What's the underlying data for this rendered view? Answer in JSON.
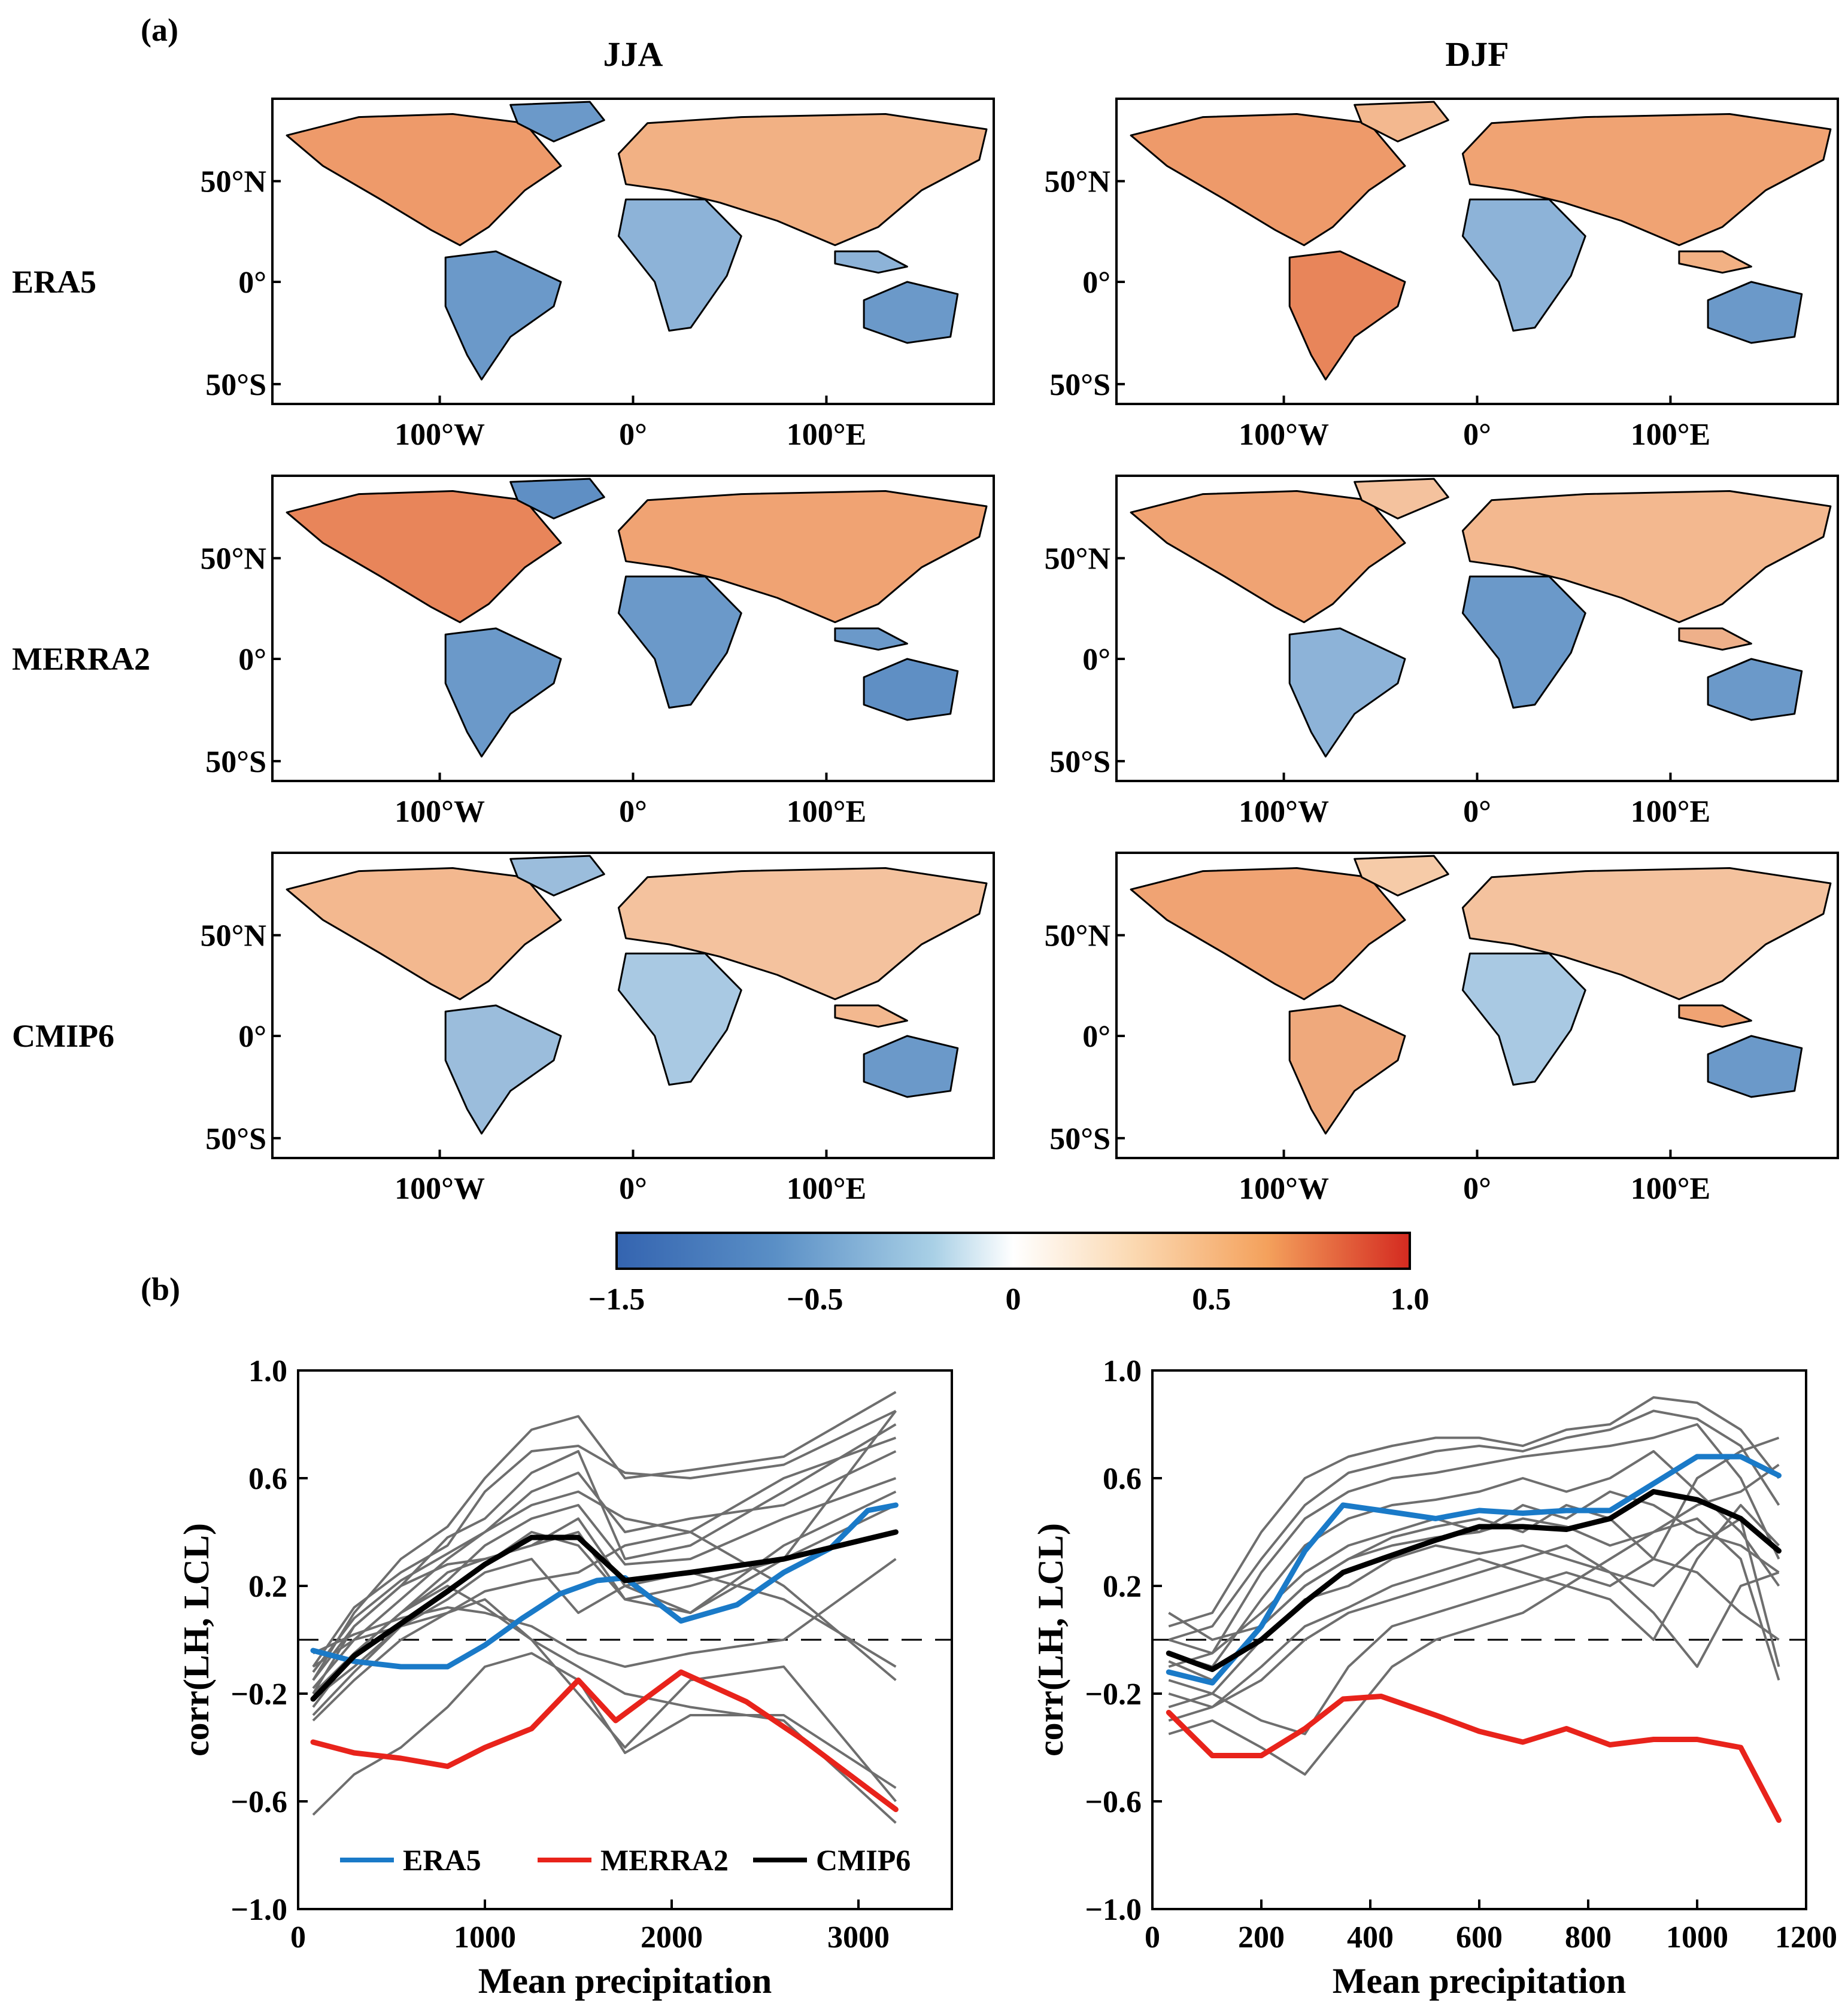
{
  "panel_labels": {
    "a": "(a)",
    "b": "(b)"
  },
  "maps": {
    "column_titles": [
      "JJA",
      "DJF"
    ],
    "row_labels": [
      "ERA5",
      "MERRA2",
      "CMIP6"
    ],
    "lat_ticks": [
      "50°N",
      "0°",
      "50°S"
    ],
    "lon_ticks": [
      "100°W",
      "0°",
      "100°E"
    ],
    "colors": {
      "negative": "#3a72b6",
      "neutral": "#f8f8f4",
      "positive": "#d42a20",
      "land_blue": "#6b99c9",
      "land_orange": "#ee9a6a"
    }
  },
  "colorbar": {
    "ticks": [
      "−1.5",
      "−0.5",
      "0",
      "0.5",
      "1.0"
    ],
    "stops": [
      "#3464b0",
      "#5a8fc6",
      "#a9d0e6",
      "#ffffff",
      "#fbd9b2",
      "#f4a15c",
      "#d42a20"
    ]
  },
  "chart_data": [
    {
      "type": "line",
      "xlabel": "Mean precipitation",
      "ylabel": "corr(LH, LCL)",
      "xlim": [
        0,
        3500
      ],
      "ylim": [
        -1.0,
        1.0
      ],
      "xticks": [
        "0",
        "1000",
        "2000",
        "3000"
      ],
      "yticks": [
        "1.0",
        "0.6",
        "0.2",
        "−0.2",
        "−0.6",
        "−1.0"
      ],
      "zero_line": "dashed",
      "legend": {
        "placement": "bottom-center",
        "entries": [
          "ERA5",
          "MERRA2",
          "CMIP6"
        ]
      },
      "series": [
        {
          "name": "ERA5",
          "color": "#1a7ac8",
          "x": [
            80,
            300,
            550,
            800,
            1000,
            1200,
            1400,
            1600,
            1750,
            2050,
            2350,
            2600,
            2850,
            3050,
            3200
          ],
          "y": [
            -0.04,
            -0.08,
            -0.1,
            -0.1,
            -0.02,
            0.08,
            0.17,
            0.22,
            0.23,
            0.07,
            0.13,
            0.25,
            0.34,
            0.48,
            0.5
          ]
        },
        {
          "name": "MERRA2",
          "color": "#e8231b",
          "x": [
            80,
            300,
            550,
            800,
            1000,
            1250,
            1500,
            1700,
            2050,
            2400,
            2700,
            2950,
            3200
          ],
          "y": [
            -0.38,
            -0.42,
            -0.44,
            -0.47,
            -0.4,
            -0.33,
            -0.15,
            -0.3,
            -0.12,
            -0.23,
            -0.37,
            -0.5,
            -0.63
          ]
        },
        {
          "name": "CMIP6",
          "color": "#000000",
          "x": [
            80,
            300,
            550,
            800,
            1000,
            1250,
            1500,
            1750,
            2100,
            2600,
            3200
          ],
          "y": [
            -0.22,
            -0.06,
            0.06,
            0.18,
            0.28,
            0.38,
            0.38,
            0.22,
            0.25,
            0.3,
            0.4
          ]
        }
      ],
      "models": [
        {
          "x": [
            80,
            300,
            550,
            800,
            1000,
            1250,
            1500,
            1750,
            2100,
            2600,
            3200
          ],
          "y": [
            -0.15,
            0.1,
            0.3,
            0.42,
            0.6,
            0.78,
            0.83,
            0.6,
            0.63,
            0.68,
            0.92
          ]
        },
        {
          "x": [
            80,
            300,
            550,
            800,
            1000,
            1250,
            1500,
            1750,
            2100,
            2600,
            3200
          ],
          "y": [
            -0.1,
            0.12,
            0.25,
            0.35,
            0.55,
            0.7,
            0.72,
            0.62,
            0.6,
            0.65,
            0.85
          ]
        },
        {
          "x": [
            80,
            300,
            550,
            800,
            1000,
            1250,
            1500,
            1750,
            2100,
            2600,
            3200
          ],
          "y": [
            -0.2,
            0.05,
            0.2,
            0.38,
            0.45,
            0.62,
            0.7,
            0.3,
            0.35,
            0.55,
            0.8
          ]
        },
        {
          "x": [
            80,
            300,
            550,
            800,
            1000,
            1250,
            1500,
            1750,
            2100,
            2600,
            3200
          ],
          "y": [
            -0.18,
            0.0,
            0.15,
            0.3,
            0.4,
            0.55,
            0.62,
            0.4,
            0.45,
            0.5,
            0.7
          ]
        },
        {
          "x": [
            80,
            300,
            550,
            800,
            1000,
            1250,
            1500,
            1750,
            2100,
            2600,
            3200
          ],
          "y": [
            -0.25,
            -0.05,
            0.1,
            0.22,
            0.35,
            0.45,
            0.5,
            0.28,
            0.3,
            0.45,
            0.6
          ]
        },
        {
          "x": [
            80,
            300,
            550,
            800,
            1000,
            1250,
            1500,
            1750,
            2100,
            2600,
            3200
          ],
          "y": [
            -0.15,
            0.05,
            0.2,
            0.28,
            0.3,
            0.35,
            0.4,
            0.15,
            0.2,
            0.3,
            0.85
          ]
        },
        {
          "x": [
            80,
            300,
            550,
            800,
            1000,
            1250,
            1500,
            1750,
            2100,
            2600,
            3200
          ],
          "y": [
            -0.22,
            -0.1,
            0.05,
            0.15,
            0.25,
            0.3,
            0.1,
            0.2,
            0.1,
            0.35,
            0.55
          ]
        },
        {
          "x": [
            80,
            300,
            550,
            800,
            1000,
            1250,
            1500,
            1750,
            2100,
            2600,
            3200
          ],
          "y": [
            -0.3,
            -0.15,
            0.0,
            0.1,
            0.18,
            0.22,
            0.25,
            0.35,
            0.4,
            0.2,
            -0.15
          ]
        },
        {
          "x": [
            80,
            300,
            550,
            800,
            1000,
            1250,
            1500,
            1750,
            2100,
            2600,
            3200
          ],
          "y": [
            -0.2,
            -0.05,
            0.1,
            0.2,
            0.12,
            0.0,
            -0.1,
            -0.2,
            -0.25,
            -0.3,
            -0.68
          ]
        },
        {
          "x": [
            80,
            300,
            550,
            800,
            1000,
            1250,
            1500,
            1750,
            2100,
            2600,
            3200
          ],
          "y": [
            -0.1,
            0.0,
            0.05,
            0.1,
            0.15,
            0.0,
            -0.2,
            -0.4,
            -0.15,
            -0.1,
            -0.6
          ]
        },
        {
          "x": [
            80,
            300,
            550,
            800,
            1000,
            1250,
            1500,
            1750,
            2100,
            2600,
            3200
          ],
          "y": [
            -0.65,
            -0.5,
            -0.4,
            -0.25,
            -0.1,
            -0.05,
            -0.15,
            -0.42,
            -0.28,
            -0.28,
            -0.55
          ]
        },
        {
          "x": [
            80,
            300,
            550,
            800,
            1000,
            1250,
            1500,
            1750,
            2100,
            2600,
            3200
          ],
          "y": [
            -0.2,
            -0.05,
            0.1,
            0.25,
            0.3,
            0.35,
            0.45,
            0.2,
            0.25,
            0.15,
            -0.1
          ]
        },
        {
          "x": [
            80,
            300,
            550,
            800,
            1000,
            1250,
            1500,
            1750,
            2100,
            2600,
            3200
          ],
          "y": [
            -0.12,
            0.08,
            0.22,
            0.32,
            0.4,
            0.5,
            0.55,
            0.45,
            0.4,
            0.6,
            0.75
          ]
        },
        {
          "x": [
            80,
            300,
            550,
            800,
            1000,
            1250,
            1500,
            1750,
            2100,
            2600,
            3200
          ],
          "y": [
            -0.05,
            0.02,
            0.08,
            0.12,
            0.1,
            0.05,
            -0.05,
            -0.1,
            -0.05,
            0.0,
            0.3
          ]
        },
        {
          "x": [
            80,
            300,
            550,
            800,
            1000,
            1250,
            1500,
            1750,
            2100,
            2600,
            3200
          ],
          "y": [
            -0.28,
            -0.12,
            0.05,
            0.18,
            0.28,
            0.4,
            0.35,
            0.15,
            0.1,
            0.3,
            0.5
          ]
        }
      ]
    },
    {
      "type": "line",
      "xlabel": "Mean precipitation",
      "ylabel": "corr(LH, LCL)",
      "xlim": [
        0,
        1200
      ],
      "ylim": [
        -1.0,
        1.0
      ],
      "xticks": [
        "0",
        "200",
        "400",
        "600",
        "800",
        "1000",
        "1200"
      ],
      "yticks": [
        "1.0",
        "0.6",
        "0.2",
        "−0.2",
        "−0.6",
        "−1.0"
      ],
      "zero_line": "dashed",
      "series": [
        {
          "name": "ERA5",
          "color": "#1a7ac8",
          "x": [
            30,
            110,
            200,
            280,
            350,
            420,
            520,
            600,
            680,
            760,
            840,
            920,
            1000,
            1080,
            1150
          ],
          "y": [
            -0.12,
            -0.16,
            0.05,
            0.33,
            0.5,
            0.48,
            0.45,
            0.48,
            0.47,
            0.48,
            0.48,
            0.58,
            0.68,
            0.68,
            0.61
          ]
        },
        {
          "name": "MERRA2",
          "color": "#e8231b",
          "x": [
            30,
            110,
            200,
            280,
            350,
            420,
            520,
            600,
            680,
            760,
            840,
            920,
            1000,
            1080,
            1150
          ],
          "y": [
            -0.27,
            -0.43,
            -0.43,
            -0.33,
            -0.22,
            -0.21,
            -0.28,
            -0.34,
            -0.38,
            -0.33,
            -0.39,
            -0.37,
            -0.37,
            -0.4,
            -0.67
          ]
        },
        {
          "name": "CMIP6",
          "color": "#000000",
          "x": [
            30,
            110,
            200,
            280,
            350,
            420,
            520,
            600,
            680,
            760,
            840,
            920,
            1000,
            1080,
            1150
          ],
          "y": [
            -0.05,
            -0.11,
            0.0,
            0.14,
            0.25,
            0.3,
            0.37,
            0.42,
            0.42,
            0.41,
            0.45,
            0.55,
            0.52,
            0.45,
            0.33
          ]
        }
      ],
      "models": [
        {
          "x": [
            30,
            110,
            200,
            280,
            360,
            440,
            520,
            600,
            680,
            760,
            840,
            920,
            1000,
            1080,
            1150
          ],
          "y": [
            0.05,
            0.1,
            0.4,
            0.6,
            0.68,
            0.72,
            0.75,
            0.75,
            0.72,
            0.78,
            0.8,
            0.9,
            0.88,
            0.78,
            0.6
          ]
        },
        {
          "x": [
            30,
            110,
            200,
            280,
            360,
            440,
            520,
            600,
            680,
            760,
            840,
            920,
            1000,
            1080,
            1150
          ],
          "y": [
            0.0,
            0.05,
            0.3,
            0.5,
            0.62,
            0.66,
            0.7,
            0.72,
            0.7,
            0.75,
            0.78,
            0.85,
            0.82,
            0.72,
            0.5
          ]
        },
        {
          "x": [
            30,
            110,
            200,
            280,
            360,
            440,
            520,
            600,
            680,
            760,
            840,
            920,
            1000,
            1080,
            1150
          ],
          "y": [
            -0.1,
            -0.05,
            0.25,
            0.45,
            0.55,
            0.6,
            0.62,
            0.65,
            0.68,
            0.7,
            0.72,
            0.75,
            0.8,
            0.6,
            0.3
          ]
        },
        {
          "x": [
            30,
            110,
            200,
            280,
            360,
            440,
            520,
            600,
            680,
            760,
            840,
            920,
            1000,
            1080,
            1150
          ],
          "y": [
            -0.05,
            -0.1,
            0.15,
            0.35,
            0.45,
            0.5,
            0.52,
            0.55,
            0.6,
            0.55,
            0.6,
            0.7,
            0.55,
            0.4,
            0.2
          ]
        },
        {
          "x": [
            30,
            110,
            200,
            280,
            360,
            440,
            520,
            600,
            680,
            760,
            840,
            920,
            1000,
            1080,
            1150
          ],
          "y": [
            0.1,
            0.0,
            0.05,
            0.2,
            0.3,
            0.38,
            0.42,
            0.45,
            0.4,
            0.5,
            0.45,
            0.3,
            0.6,
            0.7,
            0.75
          ]
        },
        {
          "x": [
            30,
            110,
            200,
            280,
            360,
            440,
            520,
            600,
            680,
            760,
            840,
            920,
            1000,
            1080,
            1150
          ],
          "y": [
            -0.15,
            -0.2,
            0.0,
            0.15,
            0.2,
            0.3,
            0.35,
            0.32,
            0.35,
            0.3,
            0.25,
            0.2,
            0.35,
            0.45,
            -0.1
          ]
        },
        {
          "x": [
            30,
            110,
            200,
            280,
            360,
            440,
            520,
            600,
            680,
            760,
            840,
            920,
            1000,
            1080,
            1150
          ],
          "y": [
            -0.2,
            -0.25,
            -0.1,
            0.05,
            0.12,
            0.2,
            0.25,
            0.3,
            0.25,
            0.2,
            0.3,
            0.4,
            0.45,
            0.3,
            -0.15
          ]
        },
        {
          "x": [
            30,
            110,
            200,
            280,
            360,
            440,
            520,
            600,
            680,
            760,
            840,
            920,
            1000,
            1080,
            1150
          ],
          "y": [
            -0.3,
            -0.25,
            -0.15,
            0.0,
            0.1,
            0.15,
            0.2,
            0.25,
            0.3,
            0.35,
            0.25,
            0.1,
            -0.1,
            0.2,
            0.25
          ]
        },
        {
          "x": [
            30,
            110,
            200,
            280,
            360,
            440,
            520,
            600,
            680,
            760,
            840,
            920,
            1000,
            1080,
            1150
          ],
          "y": [
            -0.25,
            -0.2,
            -0.3,
            -0.35,
            -0.1,
            0.05,
            0.1,
            0.15,
            0.2,
            0.25,
            0.2,
            0.3,
            0.25,
            0.1,
            0.0
          ]
        },
        {
          "x": [
            30,
            110,
            200,
            280,
            360,
            440,
            520,
            600,
            680,
            760,
            840,
            920,
            1000,
            1080,
            1150
          ],
          "y": [
            -0.35,
            -0.3,
            -0.4,
            -0.5,
            -0.3,
            -0.1,
            0.0,
            0.05,
            0.1,
            0.2,
            0.15,
            0.0,
            0.3,
            0.5,
            0.35
          ]
        },
        {
          "x": [
            30,
            110,
            200,
            280,
            360,
            440,
            520,
            600,
            680,
            760,
            840,
            920,
            1000,
            1080,
            1150
          ],
          "y": [
            0.0,
            -0.05,
            0.1,
            0.25,
            0.35,
            0.4,
            0.45,
            0.4,
            0.45,
            0.42,
            0.35,
            0.4,
            0.5,
            0.55,
            0.65
          ]
        },
        {
          "x": [
            30,
            110,
            200,
            280,
            360,
            440,
            520,
            600,
            680,
            760,
            840,
            920,
            1000,
            1080,
            1150
          ],
          "y": [
            -0.08,
            -0.15,
            0.05,
            0.2,
            0.3,
            0.35,
            0.38,
            0.4,
            0.5,
            0.45,
            0.55,
            0.5,
            0.4,
            0.35,
            0.25
          ]
        }
      ]
    }
  ]
}
